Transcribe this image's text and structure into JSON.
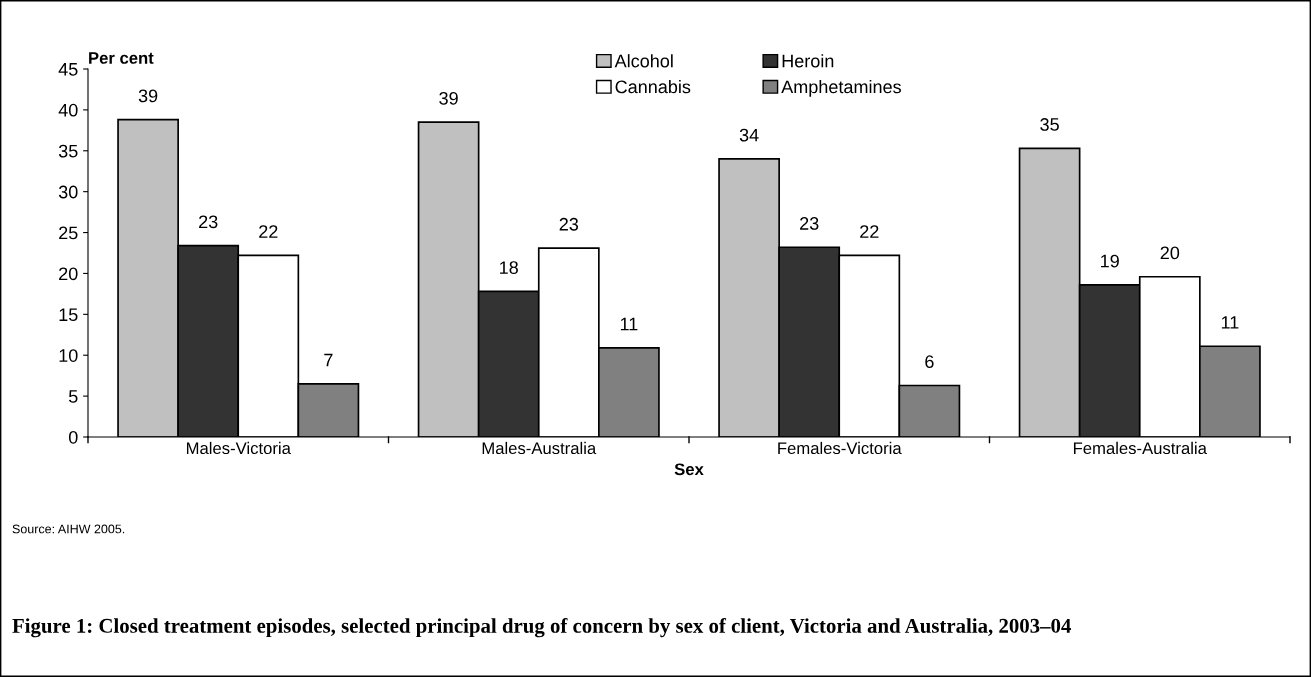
{
  "chart_data": {
    "type": "bar",
    "title": "Figure 1: Closed treatment episodes, selected principal drug of concern by sex of client, Victoria and Australia, 2003–04",
    "xlabel": "Sex",
    "ylabel": "Per cent",
    "categories": [
      "Males-Victoria",
      "Males-Australia",
      "Females-Victoria",
      "Females-Australia"
    ],
    "series": [
      {
        "name": "Alcohol",
        "color": "#c0c0c0",
        "values": [
          38.8,
          38.5,
          34.0,
          35.3
        ],
        "value_labels": [
          "39",
          "39",
          "34",
          "35"
        ]
      },
      {
        "name": "Heroin",
        "color": "#333333",
        "values": [
          23.4,
          17.8,
          23.2,
          18.6
        ],
        "value_labels": [
          "23",
          "18",
          "23",
          "19"
        ]
      },
      {
        "name": "Cannabis",
        "color": "#ffffff",
        "values": [
          22.2,
          23.1,
          22.2,
          19.6
        ],
        "value_labels": [
          "22",
          "23",
          "22",
          "20"
        ]
      },
      {
        "name": "Amphetamines",
        "color": "#808080",
        "values": [
          6.5,
          10.9,
          6.3,
          11.1
        ],
        "value_labels": [
          "7",
          "11",
          "6",
          "11"
        ]
      }
    ],
    "ylim": [
      0,
      45
    ],
    "yticks": [
      0,
      5,
      10,
      15,
      20,
      25,
      30,
      35,
      40,
      45
    ],
    "grid": false,
    "legend": "top",
    "annotations": [
      "Source: AIHW 2005."
    ]
  }
}
